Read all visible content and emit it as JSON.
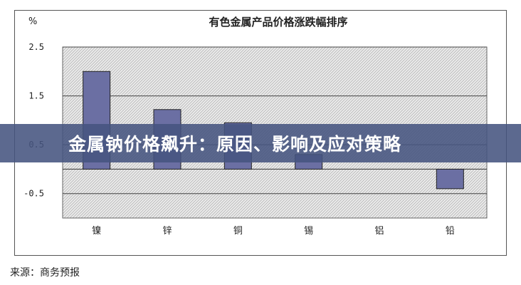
{
  "chart_data": {
    "type": "bar",
    "title": "有色金属产品价格涨跌幅排序",
    "unit_label": "%",
    "categories": [
      "镍",
      "锌",
      "铜",
      "锡",
      "铝",
      "铅"
    ],
    "values": [
      2.0,
      1.22,
      0.95,
      0.3,
      0.0,
      -0.4
    ],
    "ylim": [
      -1.0,
      2.5
    ],
    "yticks": [
      2.5,
      1.5,
      0.5,
      -0.5
    ],
    "ytick_labels": [
      "2.5",
      "1.5",
      "0.5",
      "-0.5"
    ],
    "bar_color": "#6B6FA3",
    "plot_background": "hatched-gray",
    "grid": true
  },
  "banner": {
    "text": "金属钠价格飙升：原因、影响及应对策略",
    "color": "#465480"
  },
  "source": {
    "text": "来源：商务预报"
  }
}
